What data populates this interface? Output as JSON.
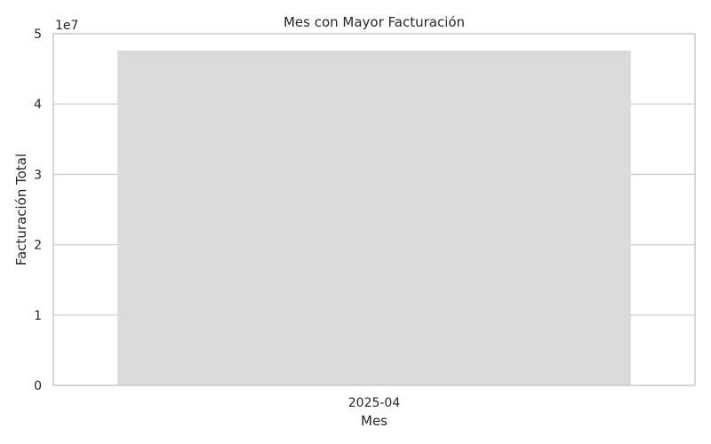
{
  "chart_data": {
    "type": "bar",
    "title": "Mes con Mayor Facturación",
    "xlabel": "Mes",
    "ylabel": "Facturación Total",
    "categories": [
      "2025-04"
    ],
    "values": [
      47600000
    ],
    "ylim": [
      0,
      50000000
    ],
    "yticks": [
      0,
      1,
      2,
      3,
      4,
      5
    ],
    "yticks_multiplier": "1e7",
    "grid": true,
    "colors": {
      "bar": "#dbdbdb",
      "grid": "#cccccc",
      "spine": "#cccccc",
      "text": "#262626"
    }
  }
}
